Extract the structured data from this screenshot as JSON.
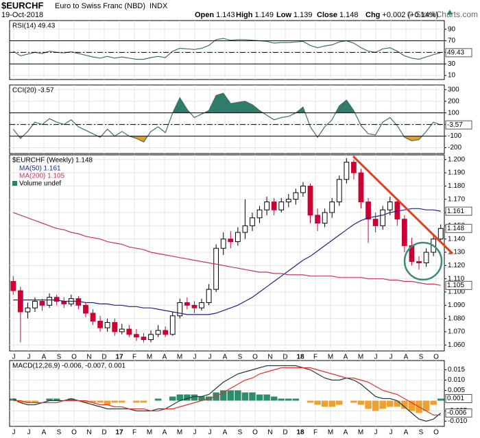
{
  "header": {
    "symbol": "$EURCHF",
    "name": "Euro to Swiss Franc (NBD)",
    "exchange": "INDX",
    "date": "19-Oct-2018",
    "quote": [
      {
        "label": "Open",
        "value": "1.143"
      },
      {
        "label": "High",
        "value": "1.149"
      },
      {
        "label": "Low",
        "value": "1.139"
      },
      {
        "label": "Close",
        "value": "1.148"
      },
      {
        "label": "Chg",
        "value": "+0.002 (+0.14%)"
      }
    ],
    "watermark": "© StockCharts.com"
  },
  "chart_data": [
    {
      "type": "line",
      "title": "RSI(14) 49.43",
      "series": [
        {
          "color": "#3f6f6f",
          "values": [
            52,
            44,
            47,
            50,
            48,
            52,
            50,
            49,
            51,
            48,
            45,
            42,
            40,
            43,
            40,
            42,
            40,
            38,
            38,
            41,
            43,
            41,
            52,
            57,
            56,
            55,
            57,
            62,
            72,
            74,
            71,
            72,
            72,
            71,
            70,
            69,
            66,
            67,
            67,
            68,
            69,
            62,
            58,
            61,
            63,
            68,
            70,
            66,
            58,
            52,
            50,
            56,
            58,
            52,
            44,
            40,
            38,
            42,
            46,
            49.43
          ]
        }
      ],
      "ylim": [
        3,
        105
      ],
      "yticks": [
        10,
        30,
        50,
        70,
        90
      ],
      "ref_lines": [
        70,
        30
      ],
      "mid_line": 50,
      "tags": [
        {
          "value": 49.43,
          "label": "49.43"
        }
      ]
    },
    {
      "type": "line",
      "title": "CCI(20) -3.57",
      "series": [
        {
          "color": "#3f6f6f",
          "values": [
            -40,
            -120,
            -60,
            20,
            0,
            50,
            20,
            0,
            40,
            -20,
            -50,
            -80,
            -110,
            -40,
            -100,
            -60,
            -100,
            -120,
            -150,
            -60,
            -20,
            -70,
            100,
            230,
            130,
            60,
            90,
            120,
            250,
            270,
            180,
            190,
            200,
            170,
            120,
            80,
            40,
            60,
            70,
            100,
            150,
            -20,
            -110,
            -20,
            40,
            160,
            210,
            120,
            -10,
            -80,
            -90,
            20,
            60,
            -10,
            -110,
            -140,
            -130,
            -60,
            20,
            -3.57
          ]
        }
      ],
      "ylim": [
        -250,
        340
      ],
      "yticks": [
        300,
        200,
        100,
        0,
        -100,
        -200
      ],
      "ref_lines": [
        100,
        -100
      ],
      "mid_line": 0,
      "fills": [
        {
          "above": 100,
          "color": "#2e7d6b"
        },
        {
          "below": -100,
          "color": "#e8a020"
        }
      ],
      "tags": [
        {
          "value": -3.57,
          "label": "-3.57"
        }
      ]
    },
    {
      "type": "candlestick",
      "title": "$EURCHF (Weekly) 1.148",
      "up_color": "#000000",
      "down_color": "#cc0033",
      "open": [
        1.108,
        1.101,
        1.085,
        1.088,
        1.093,
        1.09,
        1.096,
        1.093,
        1.091,
        1.095,
        1.09,
        1.084,
        1.078,
        1.073,
        1.077,
        1.07,
        1.072,
        1.068,
        1.066,
        1.064,
        1.068,
        1.071,
        1.068,
        1.082,
        1.092,
        1.09,
        1.088,
        1.092,
        1.102,
        1.133,
        1.14,
        1.138,
        1.145,
        1.15,
        1.156,
        1.162,
        1.168,
        1.162,
        1.168,
        1.17,
        1.175,
        1.18,
        1.158,
        1.152,
        1.16,
        1.168,
        1.185,
        1.198,
        1.19,
        1.168,
        1.155,
        1.15,
        1.162,
        1.168,
        1.155,
        1.135,
        1.123,
        1.122,
        1.13,
        1.14
      ],
      "high": [
        1.112,
        1.104,
        1.092,
        1.096,
        1.095,
        1.099,
        1.098,
        1.096,
        1.098,
        1.097,
        1.092,
        1.087,
        1.082,
        1.08,
        1.08,
        1.076,
        1.075,
        1.072,
        1.069,
        1.071,
        1.075,
        1.074,
        1.085,
        1.095,
        1.096,
        1.093,
        1.095,
        1.106,
        1.136,
        1.145,
        1.146,
        1.149,
        1.17,
        1.16,
        1.165,
        1.172,
        1.171,
        1.171,
        1.174,
        1.178,
        1.183,
        1.182,
        1.163,
        1.163,
        1.171,
        1.188,
        1.201,
        1.2,
        1.193,
        1.171,
        1.16,
        1.165,
        1.172,
        1.17,
        1.158,
        1.141,
        1.127,
        1.133,
        1.143,
        1.151
      ],
      "low": [
        1.098,
        1.062,
        1.08,
        1.085,
        1.086,
        1.088,
        1.09,
        1.088,
        1.089,
        1.087,
        1.081,
        1.075,
        1.07,
        1.07,
        1.067,
        1.068,
        1.066,
        1.063,
        1.062,
        1.062,
        1.066,
        1.066,
        1.067,
        1.08,
        1.087,
        1.084,
        1.086,
        1.09,
        1.1,
        1.128,
        1.133,
        1.135,
        1.14,
        1.146,
        1.152,
        1.158,
        1.158,
        1.16,
        1.164,
        1.166,
        1.172,
        1.152,
        1.146,
        1.149,
        1.156,
        1.165,
        1.182,
        1.185,
        1.163,
        1.137,
        1.145,
        1.147,
        1.158,
        1.15,
        1.13,
        1.12,
        1.117,
        1.119,
        1.127,
        1.139
      ],
      "close": [
        1.101,
        1.085,
        1.088,
        1.093,
        1.09,
        1.096,
        1.093,
        1.091,
        1.095,
        1.09,
        1.084,
        1.078,
        1.073,
        1.077,
        1.07,
        1.072,
        1.068,
        1.066,
        1.064,
        1.068,
        1.071,
        1.068,
        1.082,
        1.092,
        1.09,
        1.088,
        1.092,
        1.102,
        1.133,
        1.14,
        1.138,
        1.145,
        1.15,
        1.156,
        1.162,
        1.168,
        1.162,
        1.168,
        1.17,
        1.175,
        1.18,
        1.158,
        1.152,
        1.16,
        1.168,
        1.185,
        1.198,
        1.19,
        1.168,
        1.155,
        1.15,
        1.162,
        1.168,
        1.155,
        1.135,
        1.123,
        1.122,
        1.13,
        1.14,
        1.148
      ],
      "series": [
        {
          "name": "MA(50) 1.161",
          "color": "#1f1f8f",
          "values": [
            1.094,
            1.094,
            1.094,
            1.094,
            1.094,
            1.094,
            1.094,
            1.093,
            1.093,
            1.093,
            1.092,
            1.092,
            1.091,
            1.091,
            1.09,
            1.09,
            1.089,
            1.089,
            1.088,
            1.088,
            1.087,
            1.086,
            1.085,
            1.084,
            1.083,
            1.083,
            1.083,
            1.083,
            1.084,
            1.086,
            1.088,
            1.09,
            1.093,
            1.096,
            1.1,
            1.104,
            1.108,
            1.112,
            1.116,
            1.12,
            1.124,
            1.127,
            1.131,
            1.135,
            1.139,
            1.143,
            1.147,
            1.151,
            1.154,
            1.156,
            1.157,
            1.158,
            1.16,
            1.161,
            1.162,
            1.163,
            1.163,
            1.162,
            1.162,
            1.161
          ]
        },
        {
          "name": "MA(200) 1.105",
          "color": "#cc3355",
          "values": [
            1.16,
            1.158,
            1.156,
            1.154,
            1.152,
            1.15,
            1.148,
            1.147,
            1.145,
            1.144,
            1.142,
            1.141,
            1.14,
            1.138,
            1.137,
            1.136,
            1.134,
            1.133,
            1.132,
            1.13,
            1.129,
            1.128,
            1.127,
            1.126,
            1.125,
            1.124,
            1.123,
            1.122,
            1.121,
            1.12,
            1.119,
            1.118,
            1.117,
            1.116,
            1.115,
            1.115,
            1.114,
            1.114,
            1.113,
            1.113,
            1.113,
            1.112,
            1.112,
            1.112,
            1.112,
            1.111,
            1.111,
            1.111,
            1.111,
            1.11,
            1.11,
            1.11,
            1.109,
            1.109,
            1.108,
            1.108,
            1.107,
            1.106,
            1.106,
            1.105
          ]
        }
      ],
      "volume_label": "Volume undef",
      "ylim": [
        1.0555,
        1.2035
      ],
      "yticks": [
        {
          "value": 1.06,
          "label": "1.060"
        },
        {
          "value": 1.07,
          "label": "1.070"
        },
        {
          "value": 1.08,
          "label": "1.080"
        },
        {
          "value": 1.09,
          "label": "1.090"
        },
        {
          "value": 1.1,
          "label": "1.100"
        },
        {
          "value": 1.11,
          "label": "1.110"
        },
        {
          "value": 1.12,
          "label": "1.120"
        },
        {
          "value": 1.13,
          "label": "1.130"
        },
        {
          "value": 1.14,
          "label": "1.140"
        },
        {
          "value": 1.15,
          "label": "1.150"
        },
        {
          "value": 1.16,
          "label": "1.160"
        },
        {
          "value": 1.17,
          "label": "1.170"
        },
        {
          "value": 1.18,
          "label": "1.180"
        },
        {
          "value": 1.19,
          "label": "1.190"
        },
        {
          "value": 1.2,
          "label": "1.200"
        }
      ],
      "tags": [
        {
          "value": 1.161,
          "label": "1.161"
        },
        {
          "value": 1.148,
          "label": "1.148"
        },
        {
          "value": 1.105,
          "label": "1.105"
        }
      ],
      "x_labels": [
        "J",
        "J",
        "A",
        "S",
        "O",
        "N",
        "D",
        "17",
        "F",
        "M",
        "A",
        "M",
        "J",
        "J",
        "A",
        "S",
        "O",
        "N",
        "D",
        "18",
        "F",
        "M",
        "A",
        "M",
        "J",
        "J",
        "A",
        "S",
        "O"
      ]
    },
    {
      "type": "macd",
      "title": "MACD(12,26,9) -0.006, -0.007, 0.001",
      "series": [
        {
          "color": "#1c3c3c",
          "values": [
            0.001,
            -0.001,
            -0.002,
            -0.002,
            -0.001,
            0.0,
            0.0,
            0.0,
            0.001,
            0.0,
            -0.001,
            -0.002,
            -0.003,
            -0.004,
            -0.004,
            -0.004,
            -0.004,
            -0.005,
            -0.005,
            -0.005,
            -0.004,
            -0.004,
            -0.002,
            0.0,
            0.001,
            0.002,
            0.002,
            0.003,
            0.006,
            0.009,
            0.011,
            0.013,
            0.014,
            0.015,
            0.016,
            0.017,
            0.017,
            0.017,
            0.017,
            0.017,
            0.016,
            0.015,
            0.013,
            0.011,
            0.01,
            0.01,
            0.011,
            0.01,
            0.008,
            0.005,
            0.002,
            0.001,
            0.001,
            0.0,
            -0.003,
            -0.006,
            -0.009,
            -0.01,
            -0.009,
            -0.006
          ]
        },
        {
          "color": "#e03030",
          "values": [
            0.0,
            0.0,
            -0.001,
            -0.001,
            -0.001,
            -0.001,
            -0.001,
            0.0,
            0.0,
            0.0,
            0.0,
            -0.001,
            -0.002,
            -0.002,
            -0.003,
            -0.003,
            -0.004,
            -0.004,
            -0.004,
            -0.005,
            -0.005,
            -0.004,
            -0.004,
            -0.003,
            -0.002,
            -0.001,
            0.0,
            0.001,
            0.002,
            0.004,
            0.006,
            0.008,
            0.01,
            0.011,
            0.013,
            0.014,
            0.015,
            0.016,
            0.016,
            0.016,
            0.016,
            0.016,
            0.015,
            0.014,
            0.013,
            0.012,
            0.011,
            0.011,
            0.01,
            0.009,
            0.007,
            0.005,
            0.004,
            0.003,
            0.001,
            -0.001,
            -0.003,
            -0.005,
            -0.007,
            -0.007
          ]
        },
        {
          "type": "bar",
          "color": "#2e8b6b",
          "neg_color": "#f0a030",
          "values": [
            0.001,
            -0.001,
            -0.001,
            -0.001,
            0.0,
            0.001,
            0.001,
            0.0,
            0.001,
            0.0,
            -0.001,
            -0.001,
            -0.001,
            -0.002,
            -0.001,
            -0.001,
            0.0,
            -0.001,
            -0.001,
            0.0,
            0.001,
            0.0,
            0.002,
            0.003,
            0.003,
            0.003,
            0.002,
            0.002,
            0.004,
            0.005,
            0.005,
            0.005,
            0.004,
            0.004,
            0.003,
            0.003,
            0.002,
            0.001,
            0.001,
            0.001,
            0.0,
            -0.001,
            -0.002,
            -0.003,
            -0.003,
            -0.002,
            0.0,
            -0.001,
            -0.002,
            -0.004,
            -0.005,
            -0.004,
            -0.003,
            -0.003,
            -0.004,
            -0.005,
            -0.006,
            -0.005,
            -0.002,
            0.001
          ]
        }
      ],
      "ylim": [
        -0.0125,
        0.0195
      ],
      "yticks": [
        {
          "value": 0.015,
          "label": "0.015"
        },
        {
          "value": 0.01,
          "label": "0.010"
        },
        {
          "value": 0.005,
          "label": "0.005"
        },
        {
          "value": -0.005,
          "label": "-0.005"
        },
        {
          "value": -0.01,
          "label": "-0.010"
        }
      ],
      "tags": [
        {
          "value": 0.001,
          "label": "0.001"
        },
        {
          "value": -0.006,
          "label": "-0.006"
        }
      ],
      "x_labels": [
        "J",
        "J",
        "A",
        "S",
        "O",
        "N",
        "D",
        "17",
        "F",
        "M",
        "A",
        "M",
        "J",
        "J",
        "A",
        "S",
        "O",
        "N",
        "D",
        "18",
        "F",
        "M",
        "A",
        "M",
        "J",
        "J",
        "A",
        "S",
        "O"
      ]
    }
  ]
}
